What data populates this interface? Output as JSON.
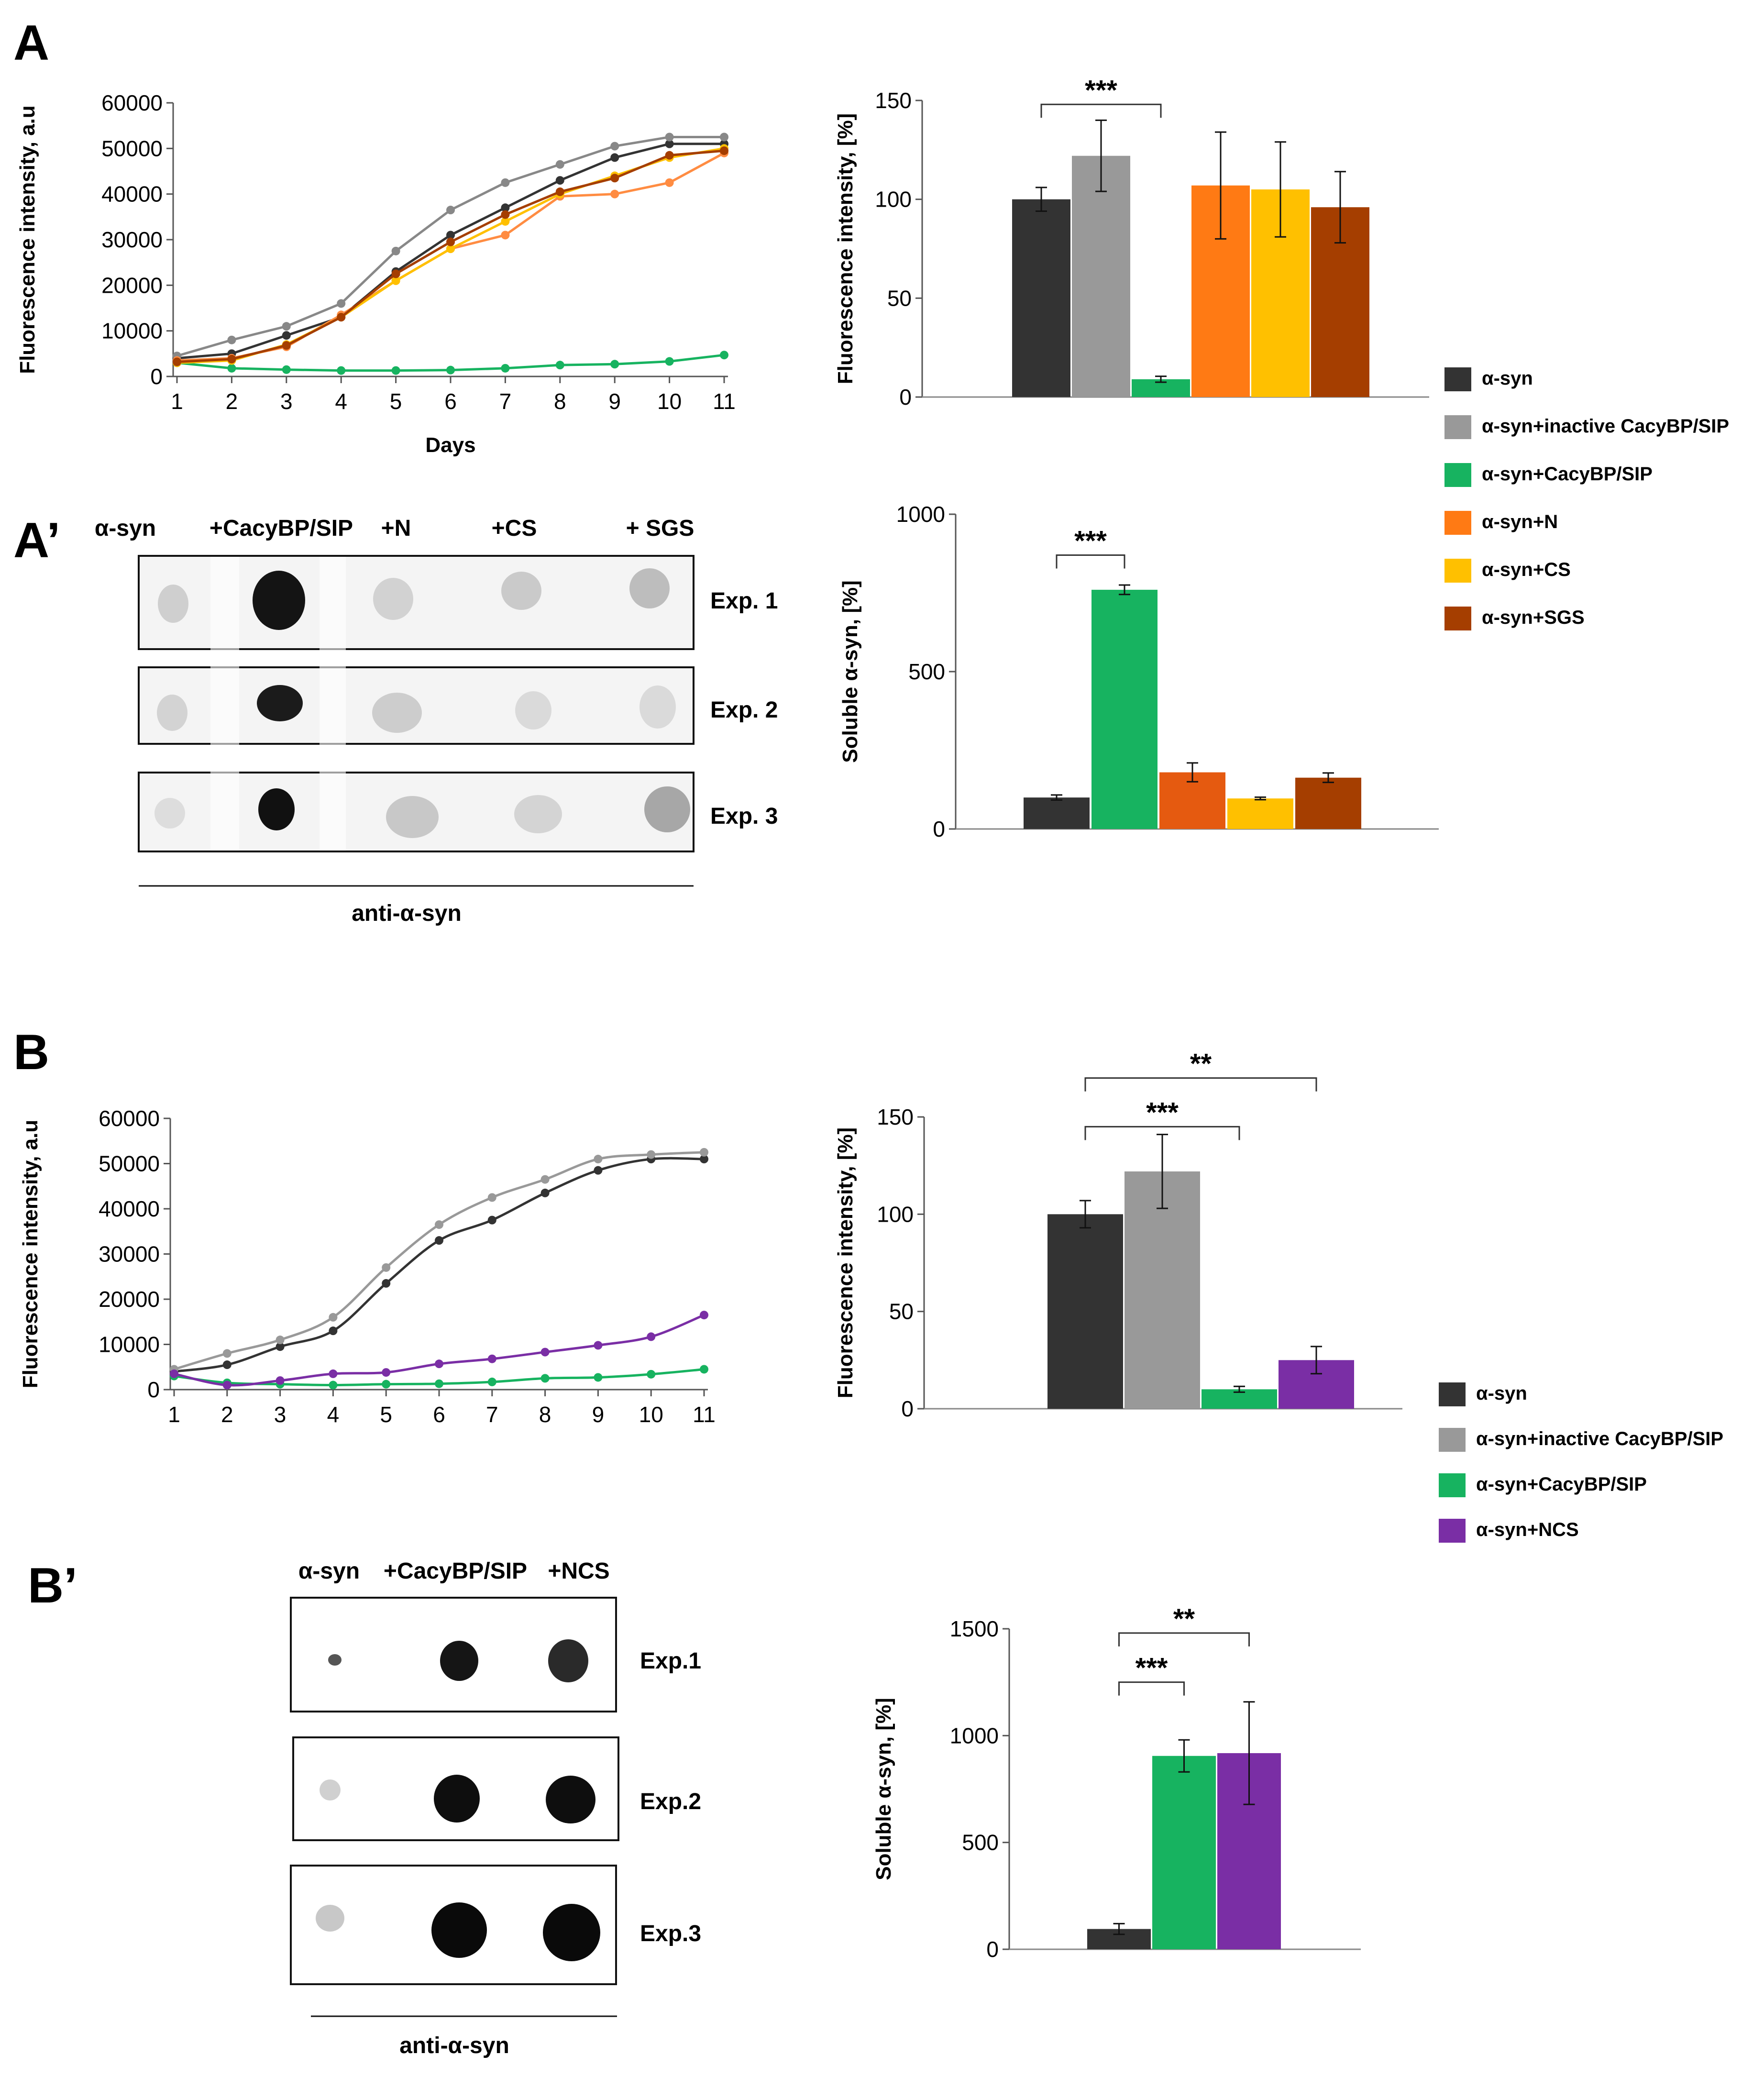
{
  "colors": {
    "a_syn": "#333333",
    "inactive": "#999999",
    "cacybp": "#17b360",
    "n": "#ff7a14",
    "cs": "#ffc000",
    "sgs": "#a53e00",
    "ncs": "#7a2ea5",
    "axis": "#555555"
  },
  "panels": {
    "A": "A",
    "A_prime": "A’",
    "B": "B",
    "B_prime": "B’"
  },
  "legend_A": [
    {
      "label": "α-syn",
      "color": "#333333"
    },
    {
      "label": "α-syn+inactive CacyBP/SIP",
      "color": "#999999"
    },
    {
      "label": "α-syn+CacyBP/SIP",
      "color": "#17b360"
    },
    {
      "label": "α-syn+N",
      "color": "#ff7a14"
    },
    {
      "label": "α-syn+CS",
      "color": "#ffc000"
    },
    {
      "label": "α-syn+SGS",
      "color": "#a53e00"
    }
  ],
  "legend_B": [
    {
      "label": "α-syn",
      "color": "#333333"
    },
    {
      "label": "α-syn+inactive CacyBP/SIP",
      "color": "#999999"
    },
    {
      "label": "α-syn+CacyBP/SIP",
      "color": "#17b360"
    },
    {
      "label": "α-syn+NCS",
      "color": "#7a2ea5"
    }
  ],
  "blot_A": {
    "columns": [
      "α-syn",
      "+CacyBP/SIP",
      "+N",
      "+CS",
      "+ SGS"
    ],
    "rows": [
      "Exp. 1",
      "Exp. 2",
      "Exp. 3"
    ],
    "antibody": "anti-α-syn"
  },
  "blot_B": {
    "columns": [
      "α-syn",
      "+CacyBP/SIP",
      "+NCS"
    ],
    "rows": [
      "Exp.1",
      "Exp.2",
      "Exp.3"
    ],
    "antibody": "anti-α-syn"
  },
  "chart_data": [
    {
      "id": "A_line",
      "type": "line",
      "title": "",
      "xlabel": "Days",
      "ylabel": "Fluorescence intensity, a.u",
      "x": [
        1,
        2,
        3,
        4,
        5,
        6,
        7,
        8,
        9,
        10,
        11
      ],
      "xticks": [
        "1",
        "2",
        "3",
        "4",
        "5",
        "6",
        "7",
        "8",
        "9",
        "10",
        "11"
      ],
      "ylim": [
        0,
        60000
      ],
      "yticks": [
        "0",
        "10000",
        "20000",
        "30000",
        "40000",
        "50000",
        "60000"
      ],
      "series": [
        {
          "name": "α-syn",
          "color": "#333333",
          "values": [
            4000,
            5000,
            9000,
            13000,
            23000,
            31000,
            37000,
            43000,
            48000,
            51000,
            51000
          ]
        },
        {
          "name": "α-syn+inactive CacyBP/SIP",
          "color": "#888888",
          "values": [
            4500,
            8000,
            11000,
            16000,
            27500,
            36500,
            42500,
            46500,
            50500,
            52500,
            52500
          ]
        },
        {
          "name": "α-syn+CacyBP/SIP",
          "color": "#17b360",
          "values": [
            3000,
            1800,
            1500,
            1300,
            1300,
            1400,
            1800,
            2500,
            2700,
            3300,
            4700
          ]
        },
        {
          "name": "α-syn+N",
          "color": "#ff8c42",
          "values": [
            3500,
            4000,
            6500,
            13500,
            21000,
            28000,
            31000,
            39500,
            40000,
            42500,
            49000
          ]
        },
        {
          "name": "α-syn+CS",
          "color": "#ffc000",
          "values": [
            3000,
            3500,
            7000,
            13000,
            21000,
            28000,
            34000,
            40000,
            44000,
            48000,
            50000
          ]
        },
        {
          "name": "α-syn+SGS",
          "color": "#a53e00",
          "values": [
            3200,
            3800,
            6800,
            13000,
            22500,
            29500,
            35500,
            40500,
            43500,
            48500,
            49500
          ]
        }
      ]
    },
    {
      "id": "A_bar_fluor",
      "type": "bar",
      "ylabel": "Fluorescence intensity, [%]",
      "ylim": [
        0,
        150
      ],
      "yticks": [
        "0",
        "50",
        "100",
        "150"
      ],
      "categories": [
        "α-syn",
        "α-syn+inactive CacyBP/SIP",
        "α-syn+CacyBP/SIP",
        "α-syn+N",
        "α-syn+CS",
        "α-syn+SGS"
      ],
      "values": [
        100,
        122,
        9,
        107,
        105,
        96
      ],
      "errors": [
        6,
        18,
        1.5,
        27,
        24,
        18
      ],
      "colors": [
        "#333333",
        "#999999",
        "#17b360",
        "#ff7a14",
        "#ffc000",
        "#a53e00"
      ],
      "annotations": [
        {
          "from": 0,
          "to": 2,
          "text": "***",
          "level": 148
        }
      ]
    },
    {
      "id": "A_bar_soluble",
      "type": "bar",
      "ylabel": "Soluble α-syn, [%]",
      "ylim": [
        0,
        1000
      ],
      "yticks": [
        "0",
        "500",
        "1000"
      ],
      "categories": [
        "α-syn",
        "α-syn+CacyBP/SIP",
        "α-syn+N",
        "α-syn+CS",
        "α-syn+SGS"
      ],
      "values": [
        100,
        760,
        180,
        97,
        163
      ],
      "errors": [
        8,
        15,
        30,
        4,
        15
      ],
      "colors": [
        "#333333",
        "#17b360",
        "#e55a10",
        "#ffc000",
        "#a53e00"
      ],
      "annotations": [
        {
          "from": 0,
          "to": 1,
          "text": "***",
          "level": 870
        }
      ]
    },
    {
      "id": "B_line",
      "type": "line",
      "xlabel": "",
      "ylabel": "Fluorescence intensity, a.u",
      "x": [
        1,
        2,
        3,
        4,
        5,
        6,
        7,
        8,
        9,
        10,
        11
      ],
      "xticks": [
        "1",
        "2",
        "3",
        "4",
        "5",
        "6",
        "7",
        "8",
        "9",
        "10",
        "11"
      ],
      "ylim": [
        0,
        60000
      ],
      "yticks": [
        "0",
        "10000",
        "20000",
        "30000",
        "40000",
        "50000",
        "60000"
      ],
      "series": [
        {
          "name": "α-syn",
          "color": "#333333",
          "values": [
            4000,
            5500,
            9500,
            13000,
            23500,
            33000,
            37500,
            43500,
            48500,
            51000,
            51000
          ]
        },
        {
          "name": "α-syn+inactive CacyBP/SIP",
          "color": "#999999",
          "values": [
            4500,
            8000,
            11000,
            16000,
            27000,
            36500,
            42500,
            46500,
            51000,
            52000,
            52500
          ]
        },
        {
          "name": "α-syn+CacyBP/SIP",
          "color": "#17b360",
          "values": [
            3000,
            1500,
            1200,
            1000,
            1200,
            1300,
            1700,
            2500,
            2700,
            3400,
            4500
          ]
        },
        {
          "name": "α-syn+NCS",
          "color": "#7a2ea5",
          "values": [
            3500,
            1000,
            2000,
            3500,
            3800,
            5700,
            6800,
            8300,
            9800,
            11700,
            16500
          ]
        }
      ]
    },
    {
      "id": "B_bar_fluor",
      "type": "bar",
      "ylabel": "Fluorescence intensity, [%]",
      "ylim": [
        0,
        150
      ],
      "yticks": [
        "0",
        "50",
        "100",
        "150"
      ],
      "categories": [
        "α-syn",
        "α-syn+inactive CacyBP/SIP",
        "α-syn+CacyBP/SIP",
        "α-syn+NCS"
      ],
      "values": [
        100,
        122,
        10,
        25
      ],
      "errors": [
        7,
        19,
        1.5,
        7
      ],
      "colors": [
        "#333333",
        "#999999",
        "#17b360",
        "#7a2ea5"
      ],
      "annotations": [
        {
          "from": 0,
          "to": 2,
          "text": "***",
          "level": 145
        },
        {
          "from": 0,
          "to": 3,
          "text": "**",
          "level": 170
        }
      ]
    },
    {
      "id": "B_bar_soluble",
      "type": "bar",
      "ylabel": "Soluble α-syn, [%]",
      "ylim": [
        0,
        1500
      ],
      "yticks": [
        "0",
        "500",
        "1000",
        "1500"
      ],
      "categories": [
        "α-syn",
        "α-syn+CacyBP/SIP",
        "α-syn+NCS"
      ],
      "values": [
        95,
        905,
        918
      ],
      "errors": [
        25,
        75,
        240
      ],
      "colors": [
        "#333333",
        "#17b360",
        "#7a2ea5"
      ],
      "annotations": [
        {
          "from": 0,
          "to": 1,
          "text": "***",
          "level": 1250
        },
        {
          "from": 0,
          "to": 2,
          "text": "**",
          "level": 1480
        }
      ]
    }
  ]
}
